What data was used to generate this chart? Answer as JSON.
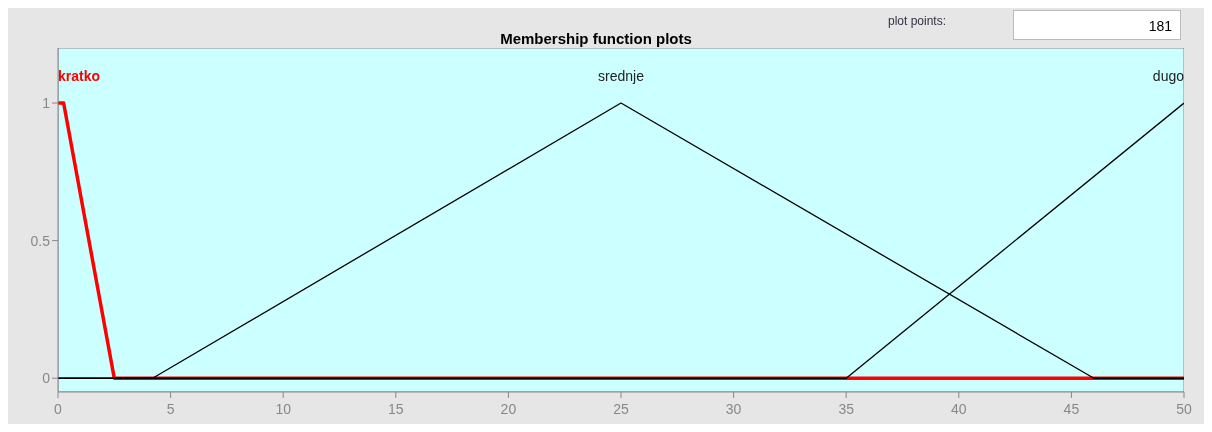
{
  "chart_data": {
    "type": "line",
    "title": "Membership function plots",
    "annotations": [
      "plot points:",
      "181"
    ],
    "xlim": [
      0,
      50
    ],
    "xticks": [
      0,
      5,
      10,
      15,
      20,
      25,
      30,
      35,
      40,
      45,
      50
    ],
    "ylim": [
      -0.05,
      1.2
    ],
    "yticks": [
      0,
      0.5,
      1
    ],
    "grid": false,
    "legend": false,
    "marker": "none",
    "line_style": "solid",
    "series": [
      {
        "name": "kratko",
        "color": "#ff0000",
        "x": [
          0,
          0.25,
          2.5,
          50
        ],
        "values": [
          1,
          1,
          0,
          0
        ]
      },
      {
        "name": "srednje",
        "color": "#000000",
        "x": [
          0,
          4.2,
          25,
          46,
          50
        ],
        "values": [
          0,
          0,
          1,
          0,
          0
        ]
      },
      {
        "name": "dugo",
        "color": "#000000",
        "x": [
          0,
          35,
          50
        ],
        "values": [
          0,
          0,
          1
        ]
      }
    ]
  }
}
